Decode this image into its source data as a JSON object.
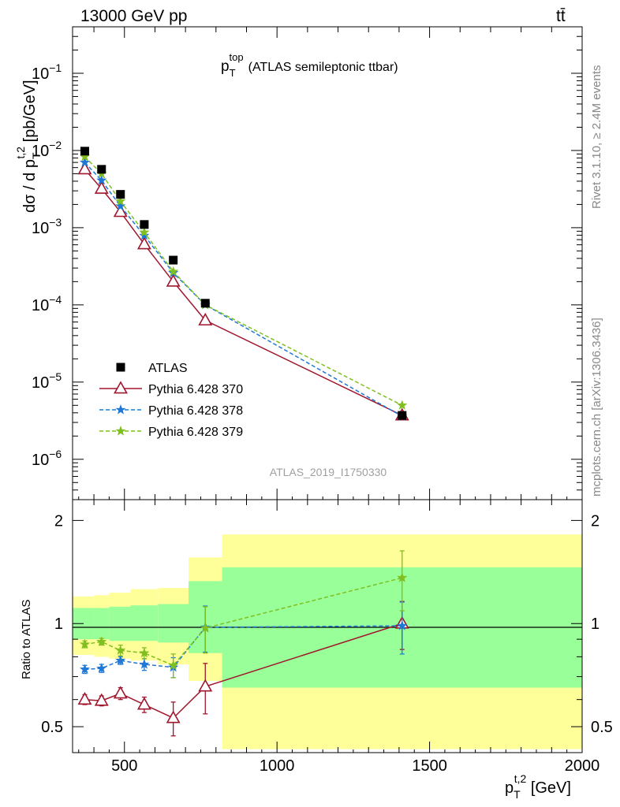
{
  "header": {
    "left": "13000 GeV pp",
    "right": "tt̄"
  },
  "side_labels": {
    "rivet": "Rivet 3.1.10, ≥ 2.4M events",
    "mcplots": "mcplots.cern.ch [arXiv:1306.3436]"
  },
  "analysis_id": "ATLAS_2019_I1750330",
  "colors": {
    "data": "#000000",
    "py370": "#a0162d",
    "py378": "#1f78d6",
    "py379": "#7fbf1f",
    "band_outer": "#ffff99",
    "band_inner": "#99ff99"
  },
  "chart_data": [
    {
      "type": "scatter",
      "panel": "main",
      "title": "p_T^top (ATLAS semileptonic ttbar)",
      "title_parts": {
        "p": "p",
        "sub": "T",
        "sup": "top",
        "rest": "(ATLAS semileptonic ttbar)"
      },
      "ylabel": "dσ / d p_T^{t,2} [pb/GeV]",
      "ylabel_parts": {
        "pre": "dσ / d p",
        "sub": "T",
        "sup": "t,2",
        "post": " [pb/GeV]"
      },
      "xlim": [
        330,
        2000
      ],
      "ylim": [
        3e-07,
        0.4
      ],
      "yscale": "log",
      "ytick_labels": [
        {
          "base": "10",
          "exp": "−1",
          "value": 0.1
        },
        {
          "base": "10",
          "exp": "−2",
          "value": 0.01
        },
        {
          "base": "10",
          "exp": "−3",
          "value": 0.001
        },
        {
          "base": "10",
          "exp": "−4",
          "value": 0.0001
        },
        {
          "base": "10",
          "exp": "−5",
          "value": 1e-05
        },
        {
          "base": "10",
          "exp": "−6",
          "value": 1e-06
        }
      ],
      "x": [
        370,
        425,
        487,
        565,
        660,
        765,
        1410
      ],
      "series": [
        {
          "name": "ATLAS",
          "key": "data",
          "marker": "square",
          "values": [
            0.0098,
            0.0057,
            0.0027,
            0.0011,
            0.00038,
            0.000105,
            3.7e-06
          ]
        },
        {
          "name": "Pythia 6.428 370",
          "key": "py370",
          "marker": "open-triangle",
          "line": "solid",
          "values": [
            0.0057,
            0.0032,
            0.0016,
            0.00061,
            0.0002,
            6.3e-05,
            3.7e-06
          ]
        },
        {
          "name": "Pythia 6.428 378",
          "key": "py378",
          "marker": "star",
          "line": "dashed",
          "values": [
            0.007,
            0.0041,
            0.0019,
            0.00079,
            0.00026,
            0.0001,
            3.6e-06
          ]
        },
        {
          "name": "Pythia 6.428 379",
          "key": "py379",
          "marker": "star",
          "line": "dashed",
          "values": [
            0.0083,
            0.005,
            0.0022,
            0.00087,
            0.00027,
            0.0001,
            5e-06
          ]
        }
      ],
      "legend": "lower-left",
      "grid": false
    },
    {
      "type": "scatter",
      "panel": "ratio",
      "ylabel": "Ratio to ATLAS",
      "xlabel": "p_T^{t,2} [GeV]",
      "xlabel_parts": {
        "pre": "p",
        "sub": "T",
        "sup": "t,2",
        "post": " [GeV]"
      },
      "xlim": [
        330,
        2000
      ],
      "ylim": [
        0.42,
        2.3
      ],
      "yscale": "log",
      "xtick_labels": [
        "500",
        "1000",
        "1500",
        "2000"
      ],
      "xticks": [
        500,
        1000,
        1500,
        2000
      ],
      "ytick_labels": [
        "0.5",
        "1",
        "2"
      ],
      "yticks": [
        0.5,
        1,
        2
      ],
      "x": [
        370,
        425,
        487,
        565,
        660,
        765,
        1410
      ],
      "bands": {
        "bin_edges": [
          330,
          400,
          450,
          520,
          610,
          710,
          820,
          2000
        ],
        "outer_low": [
          0.81,
          0.8,
          0.79,
          0.78,
          0.76,
          0.68,
          0.43
        ],
        "outer_high": [
          1.2,
          1.21,
          1.23,
          1.26,
          1.27,
          1.56,
          1.82
        ],
        "inner_low": [
          0.9,
          0.9,
          0.89,
          0.89,
          0.88,
          0.82,
          0.65
        ],
        "inner_high": [
          1.11,
          1.11,
          1.12,
          1.13,
          1.14,
          1.33,
          1.46
        ]
      },
      "series": [
        {
          "name": "Pythia 6.428 370",
          "key": "py370",
          "marker": "open-triangle",
          "line": "solid",
          "values": [
            0.6,
            0.595,
            0.625,
            0.58,
            0.53,
            0.655,
            1.0
          ],
          "err": [
            0.02,
            0.02,
            0.025,
            0.03,
            0.06,
            0.11,
            0.16
          ]
        },
        {
          "name": "Pythia 6.428 378",
          "key": "py378",
          "marker": "star",
          "line": "dashed",
          "values": [
            0.735,
            0.74,
            0.78,
            0.76,
            0.745,
            0.975,
            0.985
          ],
          "err": [
            0.02,
            0.02,
            0.02,
            0.03,
            0.05,
            0.15,
            0.17
          ]
        },
        {
          "name": "Pythia 6.428 379",
          "key": "py379",
          "marker": "star",
          "line": "dashed",
          "values": [
            0.87,
            0.885,
            0.835,
            0.82,
            0.755,
            0.97,
            1.36
          ],
          "err": [
            0.02,
            0.02,
            0.03,
            0.03,
            0.06,
            0.15,
            0.27
          ]
        }
      ],
      "grid": false
    }
  ]
}
